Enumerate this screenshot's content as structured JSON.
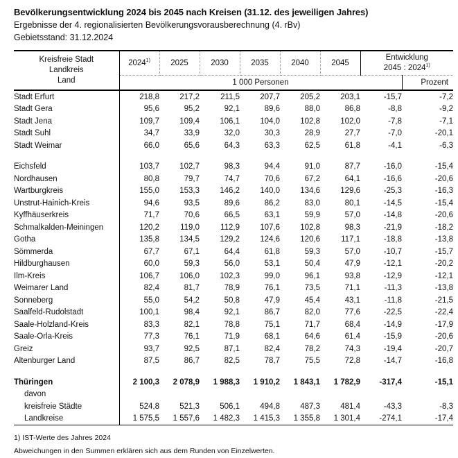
{
  "page": {
    "title": "Bevölkerungsentwicklung 2024 bis 2045 nach Kreisen (31.12. des jeweiligen Jahres)",
    "subtitle": "Ergebnisse der 4. regionalisierten Bevölkerungsvorausberechnung (4. rBv)",
    "stand": "Gebietsstand: 31.12.2024"
  },
  "table": {
    "row_header_lines": [
      "Kreisfreie Stadt",
      "Landkreis",
      "Land"
    ],
    "year_columns": [
      {
        "label": "2024",
        "sup": "1)"
      },
      {
        "label": "2025"
      },
      {
        "label": "2030"
      },
      {
        "label": "2035"
      },
      {
        "label": "2040"
      },
      {
        "label": "2045"
      }
    ],
    "development_header": {
      "line1": "Entwicklung",
      "line2": "2045 : 2024",
      "sup": "1)"
    },
    "unit_label": "1 000 Personen",
    "percent_label": "Prozent",
    "rows": [
      {
        "name": "Stadt Erfurt",
        "values": [
          "218,8",
          "217,2",
          "211,5",
          "207,7",
          "205,2",
          "203,1",
          "-15,7",
          "-7,2"
        ]
      },
      {
        "name": "Stadt Gera",
        "values": [
          "95,6",
          "95,2",
          "92,1",
          "89,6",
          "88,0",
          "86,8",
          "-8,8",
          "-9,2"
        ]
      },
      {
        "name": "Stadt Jena",
        "values": [
          "109,7",
          "109,4",
          "106,1",
          "104,0",
          "102,8",
          "102,0",
          "-7,8",
          "-7,1"
        ]
      },
      {
        "name": "Stadt Suhl",
        "values": [
          "34,7",
          "33,9",
          "32,0",
          "30,3",
          "28,9",
          "27,7",
          "-7,0",
          "-20,1"
        ]
      },
      {
        "name": "Stadt Weimar",
        "values": [
          "66,0",
          "65,6",
          "64,3",
          "63,3",
          "62,5",
          "61,8",
          "-4,1",
          "-6,3"
        ]
      },
      {
        "gap": true
      },
      {
        "name": "Eichsfeld",
        "values": [
          "103,7",
          "102,7",
          "98,3",
          "94,4",
          "91,0",
          "87,7",
          "-16,0",
          "-15,4"
        ]
      },
      {
        "name": "Nordhausen",
        "values": [
          "80,8",
          "79,7",
          "74,7",
          "70,6",
          "67,2",
          "64,1",
          "-16,6",
          "-20,6"
        ]
      },
      {
        "name": "Wartburgkreis",
        "values": [
          "155,0",
          "153,3",
          "146,2",
          "140,0",
          "134,6",
          "129,6",
          "-25,3",
          "-16,3"
        ]
      },
      {
        "name": "Unstrut-Hainich-Kreis",
        "values": [
          "94,6",
          "93,5",
          "89,6",
          "86,2",
          "83,0",
          "80,1",
          "-14,5",
          "-15,4"
        ]
      },
      {
        "name": "Kyffhäuserkreis",
        "values": [
          "71,7",
          "70,6",
          "66,5",
          "63,1",
          "59,9",
          "57,0",
          "-14,8",
          "-20,6"
        ]
      },
      {
        "name": "Schmalkalden-Meiningen",
        "values": [
          "120,2",
          "119,0",
          "112,9",
          "107,6",
          "102,8",
          "98,3",
          "-21,9",
          "-18,2"
        ]
      },
      {
        "name": "Gotha",
        "values": [
          "135,8",
          "134,5",
          "129,2",
          "124,6",
          "120,6",
          "117,1",
          "-18,8",
          "-13,8"
        ]
      },
      {
        "name": "Sömmerda",
        "values": [
          "67,7",
          "67,1",
          "64,4",
          "61,8",
          "59,3",
          "57,0",
          "-10,7",
          "-15,7"
        ]
      },
      {
        "name": "Hildburghausen",
        "values": [
          "60,0",
          "59,3",
          "56,0",
          "53,1",
          "50,4",
          "47,9",
          "-12,1",
          "-20,2"
        ]
      },
      {
        "name": "Ilm-Kreis",
        "values": [
          "106,7",
          "106,0",
          "102,3",
          "99,0",
          "96,1",
          "93,8",
          "-12,9",
          "-12,1"
        ]
      },
      {
        "name": "Weimarer Land",
        "values": [
          "82,4",
          "81,7",
          "78,9",
          "76,1",
          "73,5",
          "71,1",
          "-11,3",
          "-13,8"
        ]
      },
      {
        "name": "Sonneberg",
        "values": [
          "55,0",
          "54,2",
          "50,8",
          "47,9",
          "45,4",
          "43,1",
          "-11,8",
          "-21,5"
        ]
      },
      {
        "name": "Saalfeld-Rudolstadt",
        "values": [
          "100,1",
          "98,4",
          "92,1",
          "86,7",
          "82,0",
          "77,6",
          "-22,5",
          "-22,4"
        ]
      },
      {
        "name": "Saale-Holzland-Kreis",
        "values": [
          "83,3",
          "82,1",
          "78,8",
          "75,1",
          "71,7",
          "68,4",
          "-14,9",
          "-17,9"
        ]
      },
      {
        "name": "Saale-Orla-Kreis",
        "values": [
          "77,3",
          "76,1",
          "71,9",
          "68,1",
          "64,6",
          "61,4",
          "-15,9",
          "-20,6"
        ]
      },
      {
        "name": "Greiz",
        "values": [
          "93,7",
          "92,5",
          "87,1",
          "82,4",
          "78,2",
          "74,3",
          "-19,4",
          "-20,7"
        ]
      },
      {
        "name": "Altenburger Land",
        "values": [
          "87,5",
          "86,7",
          "82,5",
          "78,7",
          "75,5",
          "72,8",
          "-14,7",
          "-16,8"
        ]
      },
      {
        "gap": true
      },
      {
        "name": "Thüringen",
        "bold": true,
        "values": [
          "2 100,3",
          "2 078,9",
          "1 988,3",
          "1 910,2",
          "1 843,1",
          "1 782,9",
          "-317,4",
          "-15,1"
        ]
      },
      {
        "name": "davon",
        "indent": true,
        "values": [
          "",
          "",
          "",
          "",
          "",
          "",
          "",
          ""
        ]
      },
      {
        "name": "kreisfreie Städte",
        "indent": true,
        "values": [
          "524,8",
          "521,3",
          "506,1",
          "494,8",
          "487,3",
          "481,4",
          "-43,3",
          "-8,3"
        ]
      },
      {
        "name": "Landkreise",
        "indent": true,
        "values": [
          "1 575,5",
          "1 557,6",
          "1 482,3",
          "1 415,3",
          "1 355,8",
          "1 301,4",
          "-274,1",
          "-17,4"
        ]
      }
    ]
  },
  "footnotes": [
    "1) IST-Werte des Jahres 2024",
    "Abweichungen in den Summen erklären sich aus dem Runden von Einzelwerten."
  ]
}
